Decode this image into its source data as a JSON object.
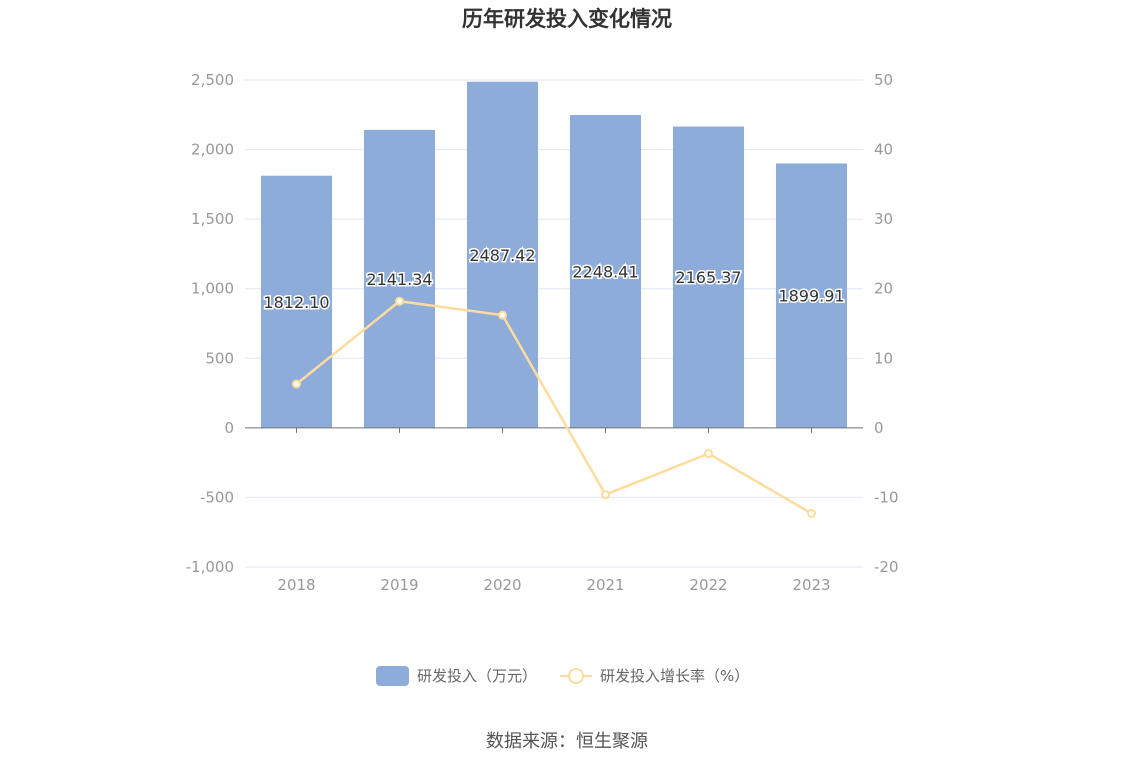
{
  "chart_data": {
    "type": "bar",
    "title": "历年研发投入变化情况",
    "categories": [
      "2018",
      "2019",
      "2020",
      "2021",
      "2022",
      "2023"
    ],
    "series": [
      {
        "name": "研发投入（万元）",
        "type": "bar",
        "axis": "left",
        "color": "#8eacd9",
        "values": [
          1812.1,
          2141.34,
          2487.42,
          2248.41,
          2165.37,
          1899.91
        ],
        "labels": [
          "1812.10",
          "2141.34",
          "2487.42",
          "2248.41",
          "2165.37",
          "1899.91"
        ]
      },
      {
        "name": "研发投入增长率（%）",
        "type": "line",
        "axis": "right",
        "color": "#fddc9e",
        "values": [
          6.3,
          18.2,
          16.2,
          -9.6,
          -3.7,
          -12.3
        ]
      }
    ],
    "y_left": {
      "min": -1000,
      "max": 2500,
      "ticks": [
        -1000,
        -500,
        0,
        500,
        1000,
        1500,
        2000,
        2500
      ],
      "tick_labels": [
        "-1,000",
        "-500",
        "0",
        "500",
        "1,000",
        "1,500",
        "2,000",
        "2,500"
      ]
    },
    "y_right": {
      "min": -20,
      "max": 50,
      "ticks": [
        -20,
        -10,
        0,
        10,
        20,
        30,
        40,
        50
      ],
      "tick_labels": [
        "-20",
        "-10",
        "0",
        "10",
        "20",
        "30",
        "40",
        "50"
      ]
    },
    "grid": true,
    "legend_position": "bottom-center"
  },
  "source_text": "数据来源：恒生聚源"
}
